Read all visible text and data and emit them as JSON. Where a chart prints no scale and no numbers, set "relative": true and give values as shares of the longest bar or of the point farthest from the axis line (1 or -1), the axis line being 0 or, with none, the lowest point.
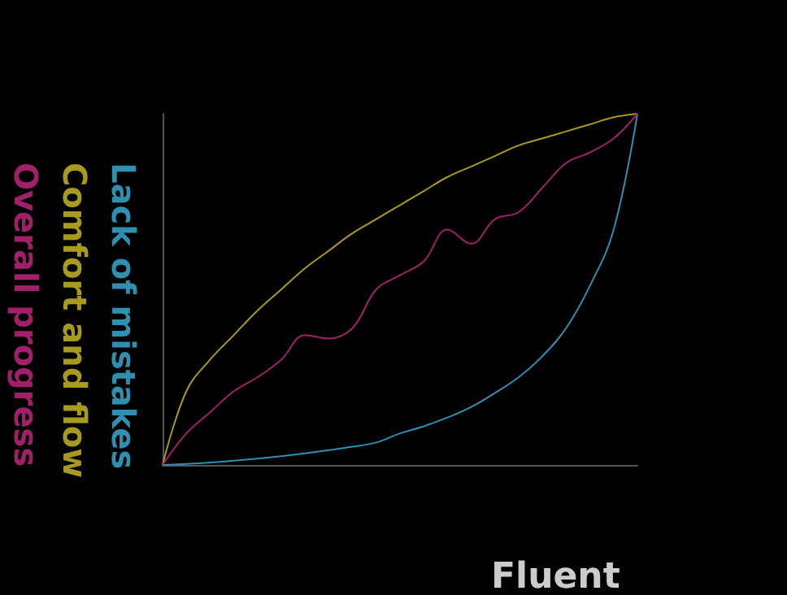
{
  "chart_data": {
    "type": "line",
    "relative": true,
    "xlabel": "Fluent",
    "legend": "left",
    "grid": false,
    "marker": "none",
    "line_style": "solid",
    "categories": [
      null,
      null,
      null,
      null,
      null,
      null,
      null,
      null,
      null,
      null,
      null,
      null,
      null,
      null,
      null,
      null,
      null,
      null,
      null,
      null,
      null
    ],
    "series": [
      {
        "name": "Lack of mistakes",
        "color": "#2f8fb0",
        "values": [
          0,
          0.003,
          0.007,
          0.012,
          0.018,
          0.025,
          0.033,
          0.042,
          0.052,
          0.064,
          0.09,
          0.11,
          0.135,
          0.165,
          0.205,
          0.25,
          0.31,
          0.39,
          0.51,
          0.67,
          1
        ]
      },
      {
        "name": "Comfort and flow",
        "color": "#a89a1c",
        "values": [
          0,
          0.21,
          0.3,
          0.37,
          0.44,
          0.5,
          0.56,
          0.61,
          0.66,
          0.7,
          0.74,
          0.78,
          0.82,
          0.85,
          0.88,
          0.91,
          0.93,
          0.95,
          0.97,
          0.99,
          1
        ]
      },
      {
        "name": "Overall progress",
        "color": "#a0206a",
        "values": [
          0,
          0.09,
          0.15,
          0.21,
          0.25,
          0.3,
          0.37,
          0.36,
          0.39,
          0.5,
          0.54,
          0.58,
          0.67,
          0.63,
          0.7,
          0.72,
          0.79,
          0.86,
          0.89,
          0.93,
          1
        ]
      }
    ]
  }
}
